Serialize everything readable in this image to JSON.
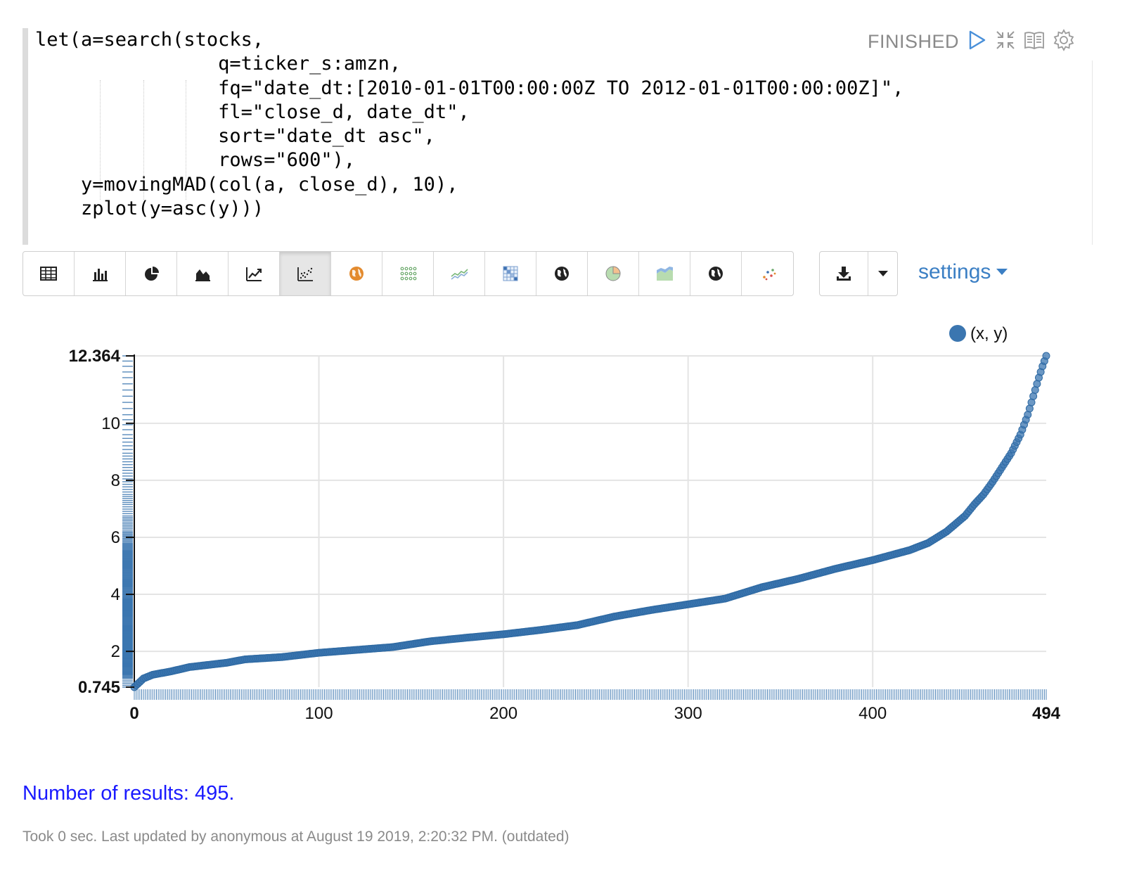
{
  "paragraph": {
    "code_lines": [
      "let(a=search(stocks,",
      "                q=ticker_s:amzn,",
      "                fq=\"date_dt:[2010-01-01T00:00:00Z TO 2012-01-01T00:00:00Z]\",",
      "                fl=\"close_d, date_dt\",",
      "                sort=\"date_dt asc\",",
      "                rows=\"600\"),",
      "    y=movingMAD(col(a, close_d), 10),",
      "    zplot(y=asc(y)))"
    ],
    "status": "FINISHED",
    "toolbar_icons": [
      "run-icon",
      "collapse-icon",
      "notebook-icon",
      "gear-icon"
    ]
  },
  "viz_buttons": [
    {
      "icon": "table-icon"
    },
    {
      "icon": "bar-chart-icon"
    },
    {
      "icon": "pie-chart-icon"
    },
    {
      "icon": "area-chart-icon"
    },
    {
      "icon": "line-chart-icon"
    },
    {
      "icon": "scatter-chart-icon",
      "active": true
    },
    {
      "icon": "globe-orange-icon"
    },
    {
      "icon": "dot-matrix-icon"
    },
    {
      "icon": "sparkline-icon"
    },
    {
      "icon": "heatmap-grid-icon"
    },
    {
      "icon": "globe-icon"
    },
    {
      "icon": "pie-color-icon"
    },
    {
      "icon": "stacked-area-icon"
    },
    {
      "icon": "globe-icon"
    },
    {
      "icon": "network-dots-icon"
    }
  ],
  "download": {
    "icon": "download-icon",
    "caret_icon": "caret-down-icon"
  },
  "settings": {
    "label": "settings",
    "icon": "caret-down-icon"
  },
  "chart_data": {
    "type": "scatter",
    "legend": {
      "label": "(x, y)",
      "position": "top-right"
    },
    "xlim": [
      0,
      494
    ],
    "ylim": [
      0.745,
      12.364
    ],
    "x_ticks": [
      "0",
      "100",
      "200",
      "300",
      "400",
      "494"
    ],
    "y_ticks": [
      "0.745",
      "2",
      "4",
      "6",
      "8",
      "10",
      "12.364"
    ],
    "x_ticks_bold": [
      "0",
      "494"
    ],
    "y_ticks_bold": [
      "0.745",
      "12.364"
    ],
    "grid": true,
    "rug_marks": true,
    "point_color": "#3b76b0",
    "n_points": 495,
    "curve_knots": [
      [
        0,
        0.745
      ],
      [
        5,
        1.05
      ],
      [
        10,
        1.18
      ],
      [
        20,
        1.3
      ],
      [
        30,
        1.45
      ],
      [
        50,
        1.6
      ],
      [
        60,
        1.72
      ],
      [
        80,
        1.8
      ],
      [
        100,
        1.95
      ],
      [
        120,
        2.05
      ],
      [
        140,
        2.15
      ],
      [
        160,
        2.35
      ],
      [
        180,
        2.48
      ],
      [
        200,
        2.6
      ],
      [
        220,
        2.75
      ],
      [
        240,
        2.92
      ],
      [
        260,
        3.22
      ],
      [
        280,
        3.45
      ],
      [
        300,
        3.65
      ],
      [
        320,
        3.85
      ],
      [
        340,
        4.25
      ],
      [
        360,
        4.55
      ],
      [
        380,
        4.9
      ],
      [
        400,
        5.2
      ],
      [
        420,
        5.55
      ],
      [
        430,
        5.8
      ],
      [
        440,
        6.2
      ],
      [
        450,
        6.75
      ],
      [
        455,
        7.15
      ],
      [
        460,
        7.5
      ],
      [
        465,
        7.95
      ],
      [
        470,
        8.45
      ],
      [
        475,
        8.95
      ],
      [
        480,
        9.6
      ],
      [
        484,
        10.3
      ],
      [
        487,
        10.95
      ],
      [
        490,
        11.6
      ],
      [
        492,
        12.0
      ],
      [
        494,
        12.364
      ]
    ],
    "top_points": [
      11.7,
      11.85,
      12.0,
      12.364
    ]
  },
  "results_text": "Number of results: 495.",
  "footer_text": "Took 0 sec. Last updated by anonymous at August 19 2019, 2:20:32 PM. (outdated)"
}
